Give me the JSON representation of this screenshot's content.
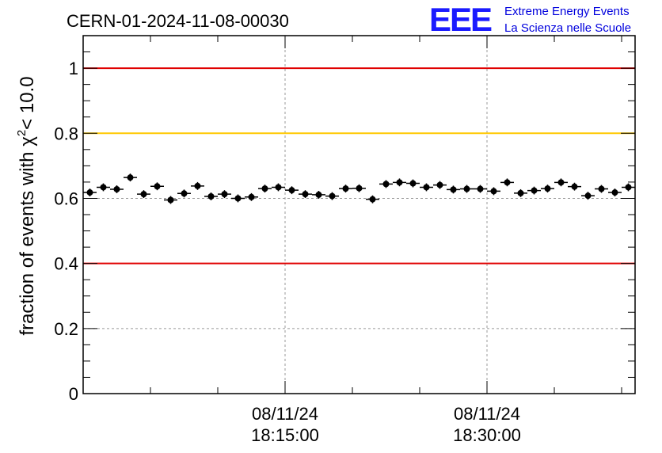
{
  "logo": {
    "mark": "EEE",
    "line1": "Extreme Energy Events",
    "line2": "La Scienza nelle Scuole",
    "color": "#1a1aff"
  },
  "chart_data": {
    "type": "scatter",
    "title": "CERN-01-2024-11-08-00030",
    "ylabel": "fraction of events with",
    "ylabel_symbol": "χ",
    "ylabel_sup": "2",
    "ylabel_suffix": "< 10.0",
    "ylim": [
      0,
      1.1
    ],
    "y_ticks": [
      {
        "value": 0,
        "label": "0"
      },
      {
        "value": 0.2,
        "label": "0.2"
      },
      {
        "value": 0.4,
        "label": "0.4"
      },
      {
        "value": 0.6,
        "label": "0.6"
      },
      {
        "value": 0.8,
        "label": "0.8"
      },
      {
        "value": 1.0,
        "label": "1"
      }
    ],
    "x_major_ticks": [
      {
        "minute": 15,
        "date": "08/11/24",
        "time": "18:15:00"
      },
      {
        "minute": 30,
        "date": "08/11/24",
        "time": "18:30:00"
      }
    ],
    "xlim_minutes": [
      0,
      41
    ],
    "reference_lines": [
      {
        "y": 1.0,
        "color": "#e00000"
      },
      {
        "y": 0.8,
        "color": "#ffc800"
      },
      {
        "y": 0.4,
        "color": "#e00000"
      }
    ],
    "grid": true,
    "series": [
      {
        "marker_color": "#000000",
        "x": [
          0.5,
          1.5,
          2.5,
          3.5,
          4.5,
          5.5,
          6.5,
          7.5,
          8.5,
          9.5,
          10.5,
          11.5,
          12.5,
          13.5,
          14.5,
          15.5,
          16.5,
          17.5,
          18.5,
          19.5,
          20.5,
          21.5,
          22.5,
          23.5,
          24.5,
          25.5,
          26.5,
          27.5,
          28.5,
          29.5,
          30.5,
          31.5,
          32.5,
          33.5,
          34.5,
          35.5,
          36.5,
          37.5,
          38.5,
          39.5,
          40.5
        ],
        "y": [
          0.618,
          0.634,
          0.628,
          0.664,
          0.613,
          0.637,
          0.595,
          0.615,
          0.638,
          0.606,
          0.613,
          0.6,
          0.604,
          0.63,
          0.634,
          0.625,
          0.613,
          0.611,
          0.607,
          0.63,
          0.631,
          0.597,
          0.644,
          0.649,
          0.646,
          0.634,
          0.641,
          0.627,
          0.629,
          0.629,
          0.622,
          0.649,
          0.616,
          0.624,
          0.63,
          0.649,
          0.636,
          0.608,
          0.629,
          0.618,
          0.634
        ],
        "y_err": 0.012
      }
    ]
  }
}
